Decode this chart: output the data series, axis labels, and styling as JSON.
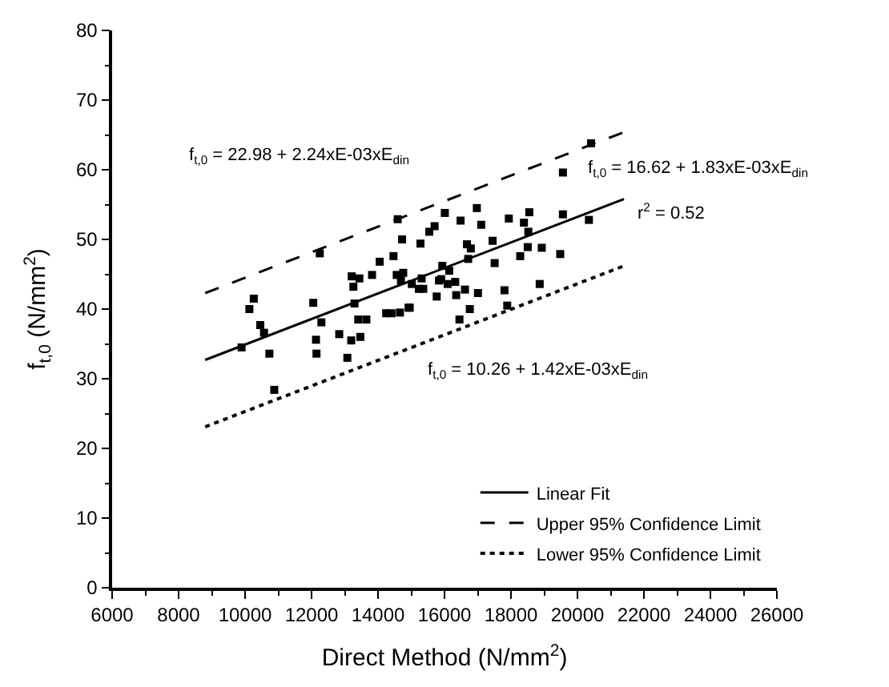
{
  "chart_data": {
    "type": "scatter",
    "xlabel": "Direct Method (N/mm$^{2}$)",
    "ylabel": "f$_{t,0}$ (N/mm$^{2}$)",
    "xlim": [
      6000,
      26000
    ],
    "xticks": [
      6000,
      8000,
      10000,
      12000,
      14000,
      16000,
      18000,
      20000,
      22000,
      24000,
      26000
    ],
    "ylim": [
      0,
      80
    ],
    "yticks": [
      0,
      10,
      20,
      30,
      40,
      50,
      60,
      70,
      80
    ],
    "legend": "bottom right",
    "marker": "square",
    "series": [
      {
        "color": "#000000",
        "x": [
          9895,
          10262,
          10130,
          10457,
          10570,
          10731,
          10878,
          12051,
          12134,
          12149,
          12247,
          12296,
          12833,
          13077,
          13194,
          13209,
          13258,
          13439,
          13405,
          13469,
          13649,
          13292,
          13820,
          14050,
          14245,
          14406,
          14465,
          14563,
          14592,
          14660,
          14724,
          14758,
          14690,
          14954,
          15017,
          15277,
          15540,
          15702,
          16010,
          16484,
          16973,
          17104,
          17935,
          18390,
          18551,
          18522,
          19563,
          20345,
          19563,
          16676,
          16792,
          17447,
          17510,
          16713,
          18278,
          18504,
          18927,
          19482,
          16142,
          15933,
          15900,
          16323,
          16093,
          15834,
          15312,
          15229,
          15361,
          15766,
          16352,
          16616,
          17007,
          16762,
          17805,
          17887,
          16450,
          18864,
          14920,
          20410
        ],
        "values": [
          34.5,
          41.5,
          40.0,
          37.7,
          36.6,
          33.6,
          28.4,
          40.9,
          35.6,
          33.6,
          48.0,
          38.1,
          36.4,
          33.0,
          35.5,
          44.7,
          43.2,
          44.4,
          38.5,
          36.0,
          38.5,
          40.8,
          44.9,
          46.8,
          39.4,
          39.4,
          47.6,
          44.9,
          52.9,
          39.5,
          50.0,
          45.2,
          44.1,
          40.2,
          43.6,
          49.4,
          51.1,
          51.9,
          53.8,
          52.7,
          54.5,
          52.1,
          53.0,
          52.4,
          53.9,
          51.1,
          53.6,
          52.8,
          59.6,
          49.3,
          48.7,
          49.8,
          46.6,
          47.2,
          47.6,
          48.9,
          48.8,
          47.9,
          45.5,
          46.2,
          44.3,
          43.9,
          43.6,
          44.1,
          44.4,
          42.9,
          42.9,
          41.8,
          42.0,
          42.8,
          42.3,
          40.0,
          42.7,
          40.5,
          38.5,
          43.6,
          40.2,
          63.8
        ]
      },
      {
        "type": "line",
        "name": "Linear Fit",
        "color": "#000000",
        "line_style": "solid",
        "marker": "none",
        "x": [
          8800,
          21400
        ],
        "values": [
          32.7,
          55.8
        ]
      },
      {
        "type": "line",
        "name": "Upper 95% Confidence Limit",
        "color": "#000000",
        "line_style": "dashed",
        "marker": "none",
        "x": [
          8800,
          21400
        ],
        "values": [
          42.3,
          65.4
        ]
      },
      {
        "type": "line",
        "name": "Lower 95% Confidence Limit",
        "color": "#000000",
        "line_style": "dotted",
        "marker": "none",
        "x": [
          8800,
          21400
        ],
        "values": [
          23.1,
          46.2
        ]
      }
    ],
    "annotations": [
      "f$_{t,0}$ = 22.98 + 2.24xE-03xE$_{din}$",
      "f$_{t,0}$ = 16.62 + 1.83xE-03xE$_{din}$",
      "r$^{2}$ = 0.52",
      "f$_{t,0}$ = 10.26 + 1.42xE-03xE$_{din}$"
    ]
  }
}
